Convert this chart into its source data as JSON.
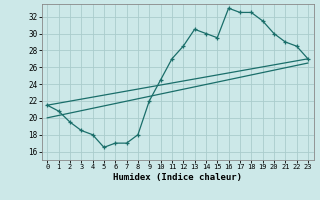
{
  "xlabel": "Humidex (Indice chaleur)",
  "xlim": [
    -0.5,
    23.5
  ],
  "ylim": [
    15.0,
    33.5
  ],
  "yticks": [
    16,
    18,
    20,
    22,
    24,
    26,
    28,
    30,
    32
  ],
  "xticks": [
    0,
    1,
    2,
    3,
    4,
    5,
    6,
    7,
    8,
    9,
    10,
    11,
    12,
    13,
    14,
    15,
    16,
    17,
    18,
    19,
    20,
    21,
    22,
    23
  ],
  "bg_color": "#cce8e8",
  "grid_color": "#aacccc",
  "line_color": "#1a6e6a",
  "line1_x": [
    0,
    1,
    2,
    3,
    4,
    5,
    6,
    7,
    8,
    9,
    10,
    11,
    12,
    13,
    14,
    15,
    16,
    17,
    18,
    19,
    20,
    21,
    22,
    23
  ],
  "line1_y": [
    21.5,
    20.8,
    19.5,
    18.5,
    18.0,
    16.5,
    17.0,
    17.0,
    18.0,
    22.0,
    24.5,
    27.0,
    28.5,
    30.5,
    30.0,
    29.5,
    33.0,
    32.5,
    32.5,
    31.5,
    30.0,
    29.0,
    28.5,
    27.0
  ],
  "line2_x": [
    0,
    23
  ],
  "line2_y": [
    21.5,
    27.0
  ],
  "line3_x": [
    0,
    23
  ],
  "line3_y": [
    20.0,
    26.5
  ]
}
